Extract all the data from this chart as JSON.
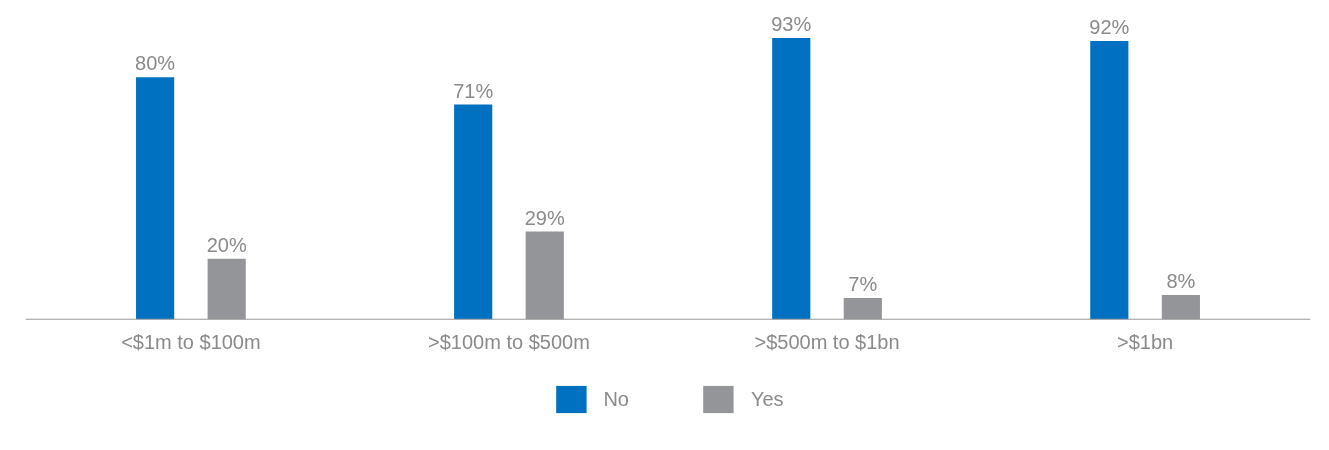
{
  "chart_data": {
    "type": "bar",
    "categories": [
      "<$1m to $100m",
      ">$100m to $500m",
      ">$500m to $1bn",
      ">$1bn"
    ],
    "series": [
      {
        "name": "No",
        "color": "#0070c0",
        "values": [
          80,
          71,
          93,
          92
        ],
        "value_labels": [
          "80%",
          "71%",
          "93%",
          "92%"
        ]
      },
      {
        "name": "Yes",
        "color": "#939598",
        "values": [
          20,
          29,
          7,
          8
        ],
        "value_labels": [
          "20%",
          "29%",
          "7%",
          "8%"
        ]
      }
    ],
    "legend": "bottom"
  }
}
